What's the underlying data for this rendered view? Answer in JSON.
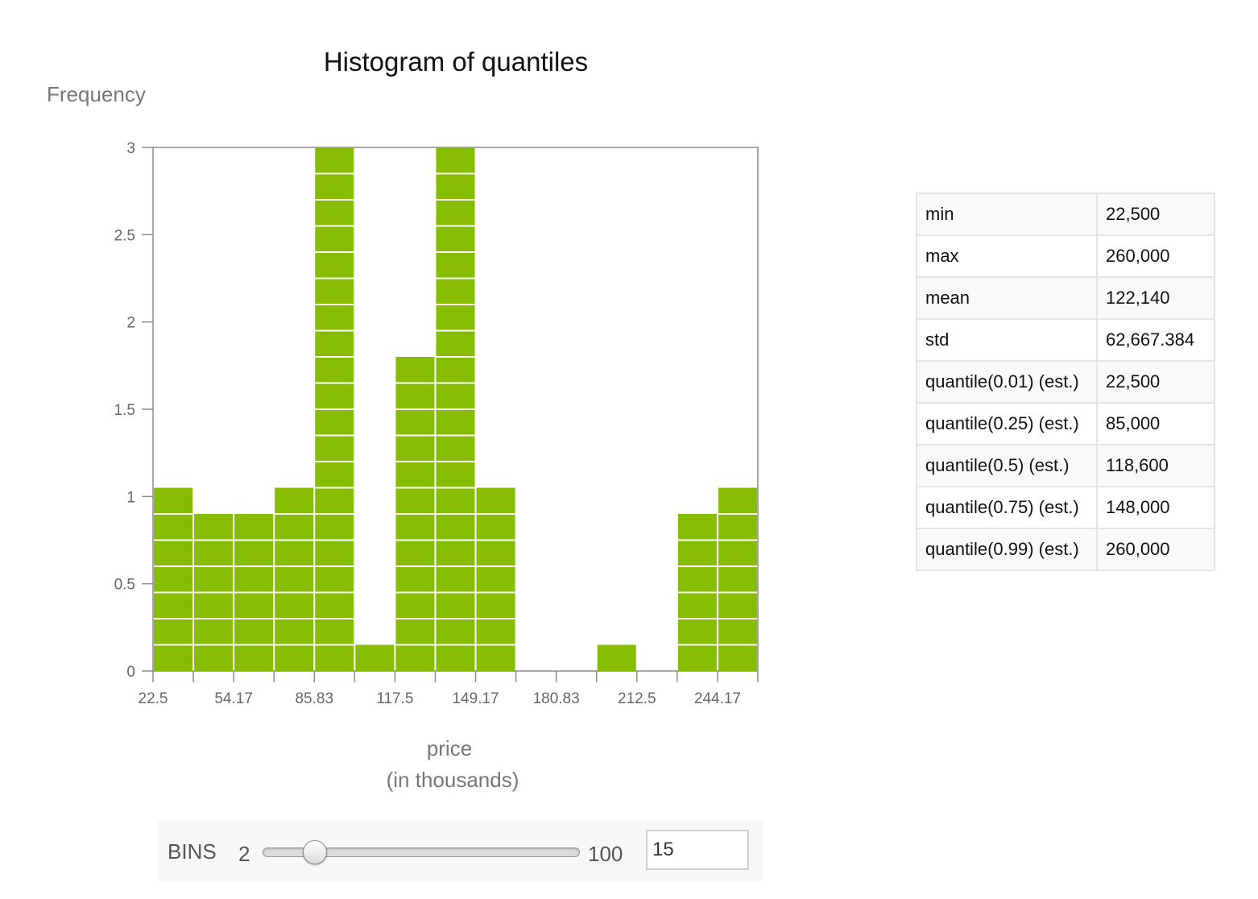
{
  "chart_data": {
    "type": "bar",
    "title": "Histogram of quantiles",
    "ylabel": "Frequency",
    "xlabel_line1": "price",
    "xlabel_line2": "(in thousands)",
    "x_ticks": [
      "22.5",
      "54.17",
      "85.83",
      "117.5",
      "149.17",
      "180.83",
      "212.5",
      "244.17"
    ],
    "x_range": [
      22.5,
      260
    ],
    "bin_width": 15.83,
    "y_ticks": [
      "0",
      "0.5",
      "1",
      "1.5",
      "2",
      "2.5",
      "3"
    ],
    "ylim": [
      0,
      3
    ],
    "values": [
      1.05,
      0.9,
      0.9,
      1.05,
      3,
      0.15,
      1.8,
      3,
      1.05,
      0,
      0,
      0.15,
      0,
      0.9,
      1.05
    ],
    "bar_color": "#86bd00",
    "grid": false,
    "legend": "none"
  },
  "stats": [
    {
      "key": "min",
      "value": "22,500"
    },
    {
      "key": "max",
      "value": "260,000"
    },
    {
      "key": "mean",
      "value": "122,140"
    },
    {
      "key": "std",
      "value": "62,667.384"
    },
    {
      "key": "quantile(0.01) (est.)",
      "value": "22,500"
    },
    {
      "key": "quantile(0.25) (est.)",
      "value": "85,000"
    },
    {
      "key": "quantile(0.5) (est.)",
      "value": "118,600"
    },
    {
      "key": "quantile(0.75) (est.)",
      "value": "148,000"
    },
    {
      "key": "quantile(0.99) (est.)",
      "value": "260,000"
    }
  ],
  "bins_control": {
    "label": "BINS",
    "min_label": "2",
    "max_label": "100",
    "value": "15",
    "min": 2,
    "max": 100
  }
}
